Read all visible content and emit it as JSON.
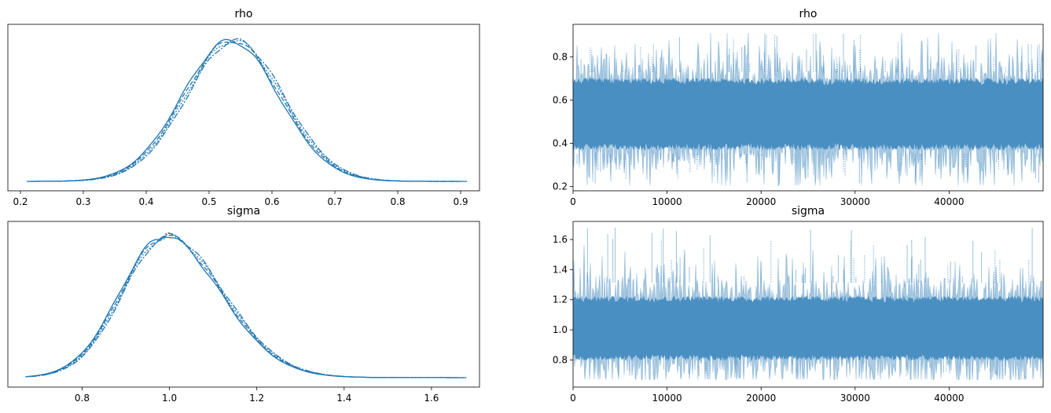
{
  "chart_data": [
    {
      "type": "line",
      "title": "rho",
      "xlim": [
        0.18,
        0.93
      ],
      "xticks": [
        0.2,
        0.3,
        0.4,
        0.5,
        0.6,
        0.7,
        0.8,
        0.9
      ],
      "xtick_labels": [
        "0.2",
        "0.3",
        "0.4",
        "0.5",
        "0.6",
        "0.7",
        "0.8",
        "0.9"
      ],
      "y_axis_labels": false,
      "series_count": 4,
      "distribution": {
        "mean": 0.538,
        "sd": 0.077,
        "min": 0.21,
        "max": 0.91
      },
      "color": "#1f77b4"
    },
    {
      "type": "line",
      "title": "rho",
      "xlim": [
        0,
        50000
      ],
      "ylim": [
        0.18,
        0.95
      ],
      "xticks": [
        0,
        10000,
        20000,
        30000,
        40000
      ],
      "xtick_labels": [
        "0",
        "10000",
        "20000",
        "30000",
        "40000"
      ],
      "yticks": [
        0.2,
        0.4,
        0.6,
        0.8
      ],
      "ytick_labels": [
        "0.2",
        "0.4",
        "0.6",
        "0.8"
      ],
      "draws": 50000,
      "center": 0.535,
      "band": [
        0.33,
        0.75
      ],
      "extremes": [
        0.205,
        0.91
      ],
      "color": "#4a8fc2"
    },
    {
      "type": "line",
      "title": "sigma",
      "xlim": [
        0.63,
        1.71
      ],
      "xticks": [
        0.8,
        1.0,
        1.2,
        1.4,
        1.6
      ],
      "xtick_labels": [
        "0.8",
        "1.0",
        "1.2",
        "1.4",
        "1.6"
      ],
      "y_axis_labels": false,
      "series_count": 4,
      "distribution": {
        "mode": 0.99,
        "sd_left": 0.1,
        "sd_right": 0.13,
        "min": 0.67,
        "max": 1.68
      },
      "color": "#1f77b4"
    },
    {
      "type": "line",
      "title": "sigma",
      "xlim": [
        0,
        50000
      ],
      "ylim": [
        0.62,
        1.72
      ],
      "xticks": [
        0,
        10000,
        20000,
        30000,
        40000
      ],
      "xtick_labels": [
        "0",
        "10000",
        "20000",
        "30000",
        "40000"
      ],
      "yticks": [
        0.8,
        1.0,
        1.2,
        1.4,
        1.6
      ],
      "ytick_labels": [
        "0.8",
        "1.0",
        "1.2",
        "1.4",
        "1.6"
      ],
      "draws": 50000,
      "center": 1.01,
      "band": [
        0.8,
        1.34
      ],
      "extremes": [
        0.67,
        1.68
      ],
      "color": "#4a8fc2"
    }
  ]
}
